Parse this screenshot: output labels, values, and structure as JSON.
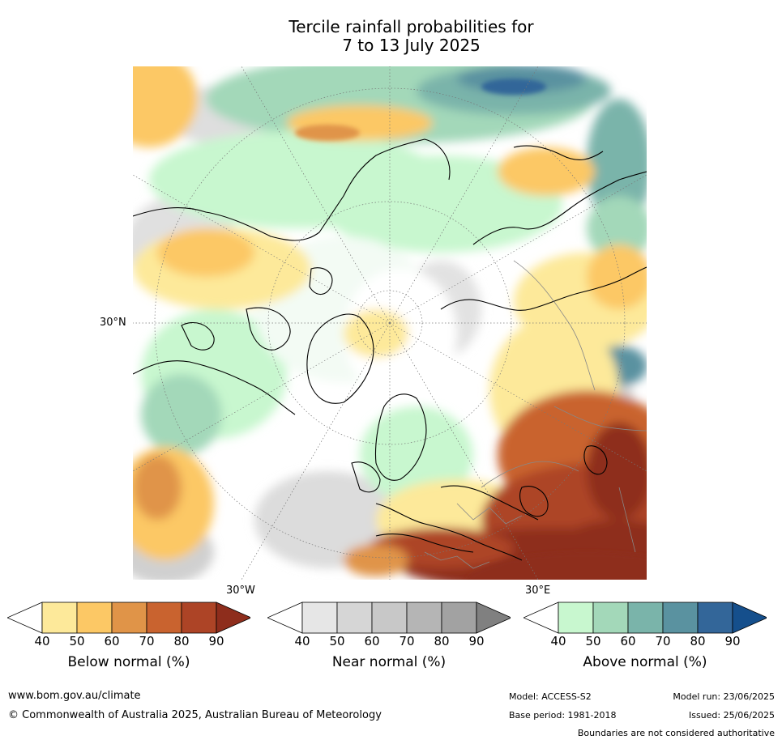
{
  "title_line1": "Tercile rainfall probabilities for",
  "title_line2": "7 to 13 July 2025",
  "map": {
    "lat_label": "30°N",
    "lon_label_west": "30°W",
    "lon_label_east": "30°E"
  },
  "colorbars": [
    {
      "label": "Below normal (%)",
      "ticks": [
        "40",
        "50",
        "60",
        "70",
        "80",
        "90"
      ],
      "colors": [
        "#ffffff",
        "#fde99a",
        "#fcc865",
        "#e09448",
        "#c9632f",
        "#ad4426",
        "#8e2d1c"
      ]
    },
    {
      "label": "Near normal (%)",
      "ticks": [
        "40",
        "50",
        "60",
        "70",
        "80",
        "90"
      ],
      "colors": [
        "#ffffff",
        "#e6e6e6",
        "#d6d6d6",
        "#c8c8c8",
        "#b5b5b5",
        "#a2a2a2",
        "#808080"
      ]
    },
    {
      "label": "Above normal (%)",
      "ticks": [
        "40",
        "50",
        "60",
        "70",
        "80",
        "90"
      ],
      "colors": [
        "#ffffff",
        "#c8f7cf",
        "#a3d8b9",
        "#7ab4aa",
        "#5a92a0",
        "#336699",
        "#154f8c"
      ]
    }
  ],
  "footer": {
    "website": "www.bom.gov.au/climate",
    "copyright": "© Commonwealth of Australia 2025, Australian Bureau of Meteorology",
    "model": "Model: ACCESS-S2",
    "base_period": "Base period: 1981-2018",
    "model_run": "Model run: 23/06/2025",
    "issued": "Issued: 25/06/2025",
    "disclaimer": "Boundaries are not considered authoritative"
  }
}
